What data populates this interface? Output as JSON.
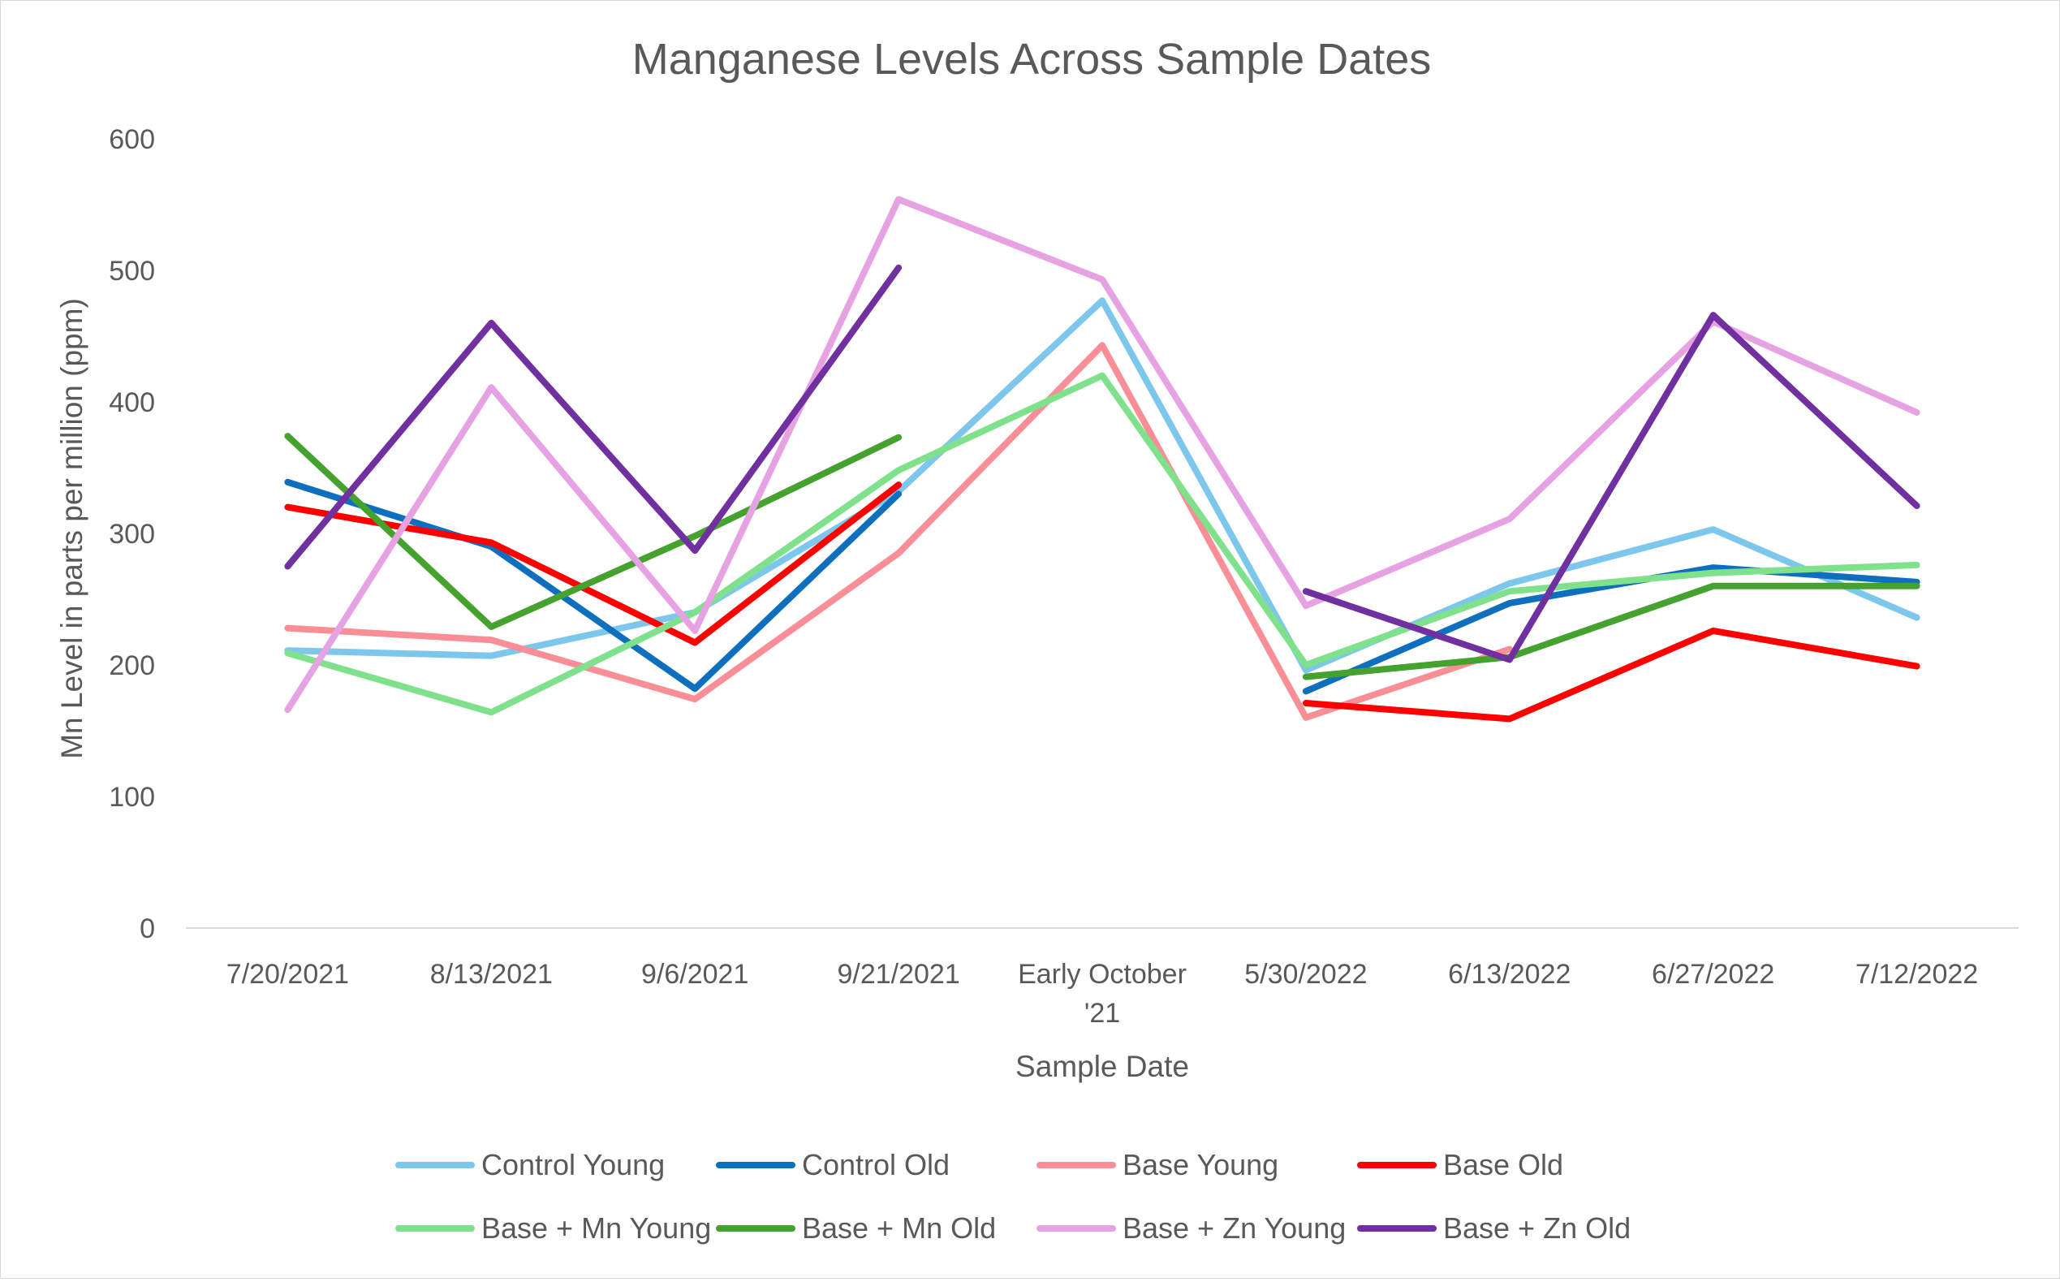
{
  "chart_data": {
    "type": "line",
    "title": "Manganese Levels Across Sample Dates",
    "xlabel": "Sample Date",
    "ylabel": "Mn Level in parts per million (ppm)",
    "ylim": [
      0,
      600
    ],
    "yticks": [
      "0",
      "100",
      "200",
      "300",
      "400",
      "500",
      "600"
    ],
    "grid": false,
    "legend_position": "bottom",
    "categories": [
      "7/20/2021",
      "8/13/2021",
      "9/6/2021",
      "9/21/2021",
      "Early October '21",
      "5/30/2022",
      "6/13/2022",
      "6/27/2022",
      "7/12/2022"
    ],
    "series": [
      {
        "name": "Control Young",
        "color": "#7DC7EC",
        "values": [
          211,
          207,
          240,
          332,
          477,
          196,
          262,
          303,
          236
        ]
      },
      {
        "name": "Control Old",
        "color": "#0F6FBF",
        "values": [
          339,
          290,
          182,
          330,
          null,
          180,
          247,
          274,
          263
        ]
      },
      {
        "name": "Base Young",
        "color": "#F98E97",
        "values": [
          228,
          219,
          174,
          285,
          443,
          160,
          212,
          null,
          null
        ]
      },
      {
        "name": "Base Old",
        "color": "#FF0000",
        "values": [
          320,
          293,
          217,
          337,
          null,
          171,
          159,
          226,
          199
        ]
      },
      {
        "name": "Base + Mn Young",
        "color": "#7FE18B",
        "values": [
          209,
          164,
          240,
          348,
          420,
          200,
          256,
          270,
          276
        ]
      },
      {
        "name": "Base + Mn Old",
        "color": "#45A22F",
        "values": [
          374,
          229,
          298,
          373,
          null,
          191,
          206,
          260,
          260
        ]
      },
      {
        "name": "Base + Zn Young",
        "color": "#E6A2E2",
        "values": [
          166,
          411,
          226,
          554,
          493,
          245,
          311,
          461,
          392
        ]
      },
      {
        "name": "Base + Zn Old",
        "color": "#7030A0",
        "values": [
          275,
          460,
          287,
          502,
          null,
          256,
          204,
          466,
          321
        ]
      }
    ]
  }
}
